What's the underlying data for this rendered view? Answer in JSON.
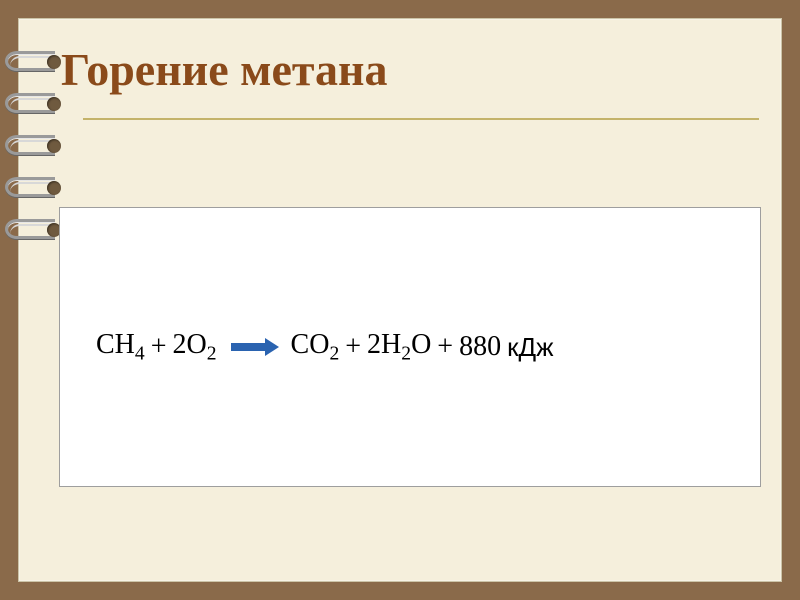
{
  "colors": {
    "frame": "#8a6a4a",
    "page_bg": "#f5efdc",
    "title_color": "#8a4a1a",
    "hr_color": "#c4b36a",
    "box_bg": "#ffffff",
    "box_border": "#9e9e9e",
    "equation_color": "#000000",
    "arrow_color": "#2a63b0"
  },
  "slide": {
    "title": "Горение метана",
    "title_fontsize": 46,
    "title_fontweight": "bold",
    "equation": {
      "reactants": [
        {
          "formula": "CH",
          "sub": "4"
        },
        {
          "formula": "2O",
          "sub": "2"
        }
      ],
      "products": [
        {
          "formula": "CO",
          "sub": "2"
        },
        {
          "formula": "2H",
          "sub": "2",
          "tail": "O"
        }
      ],
      "energy_value": "880",
      "energy_units": "кДж",
      "plus": "+",
      "arrow_color": "#2a63b0"
    }
  },
  "rings_count": 5
}
